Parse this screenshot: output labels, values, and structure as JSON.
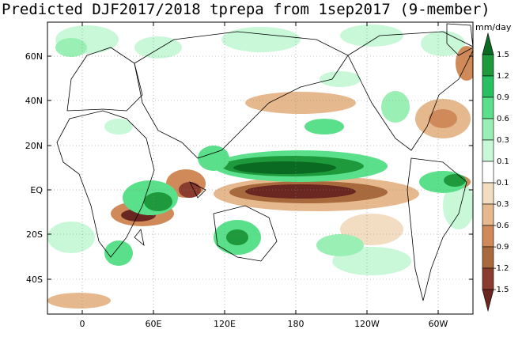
{
  "title": "Predicted DJF2017/2018 tprepa from 1sep2017 (9-member)",
  "colorbar": {
    "unit": "mm/day",
    "ticks": [
      "1.5",
      "1.2",
      "0.9",
      "0.6",
      "0.3",
      "0.1",
      "-0.1",
      "-0.3",
      "-0.6",
      "-0.9",
      "-1.2",
      "-1.5"
    ],
    "colors": [
      "#0a6a22",
      "#1e9a3c",
      "#28c060",
      "#5ae08a",
      "#9af0b4",
      "#c8f8d8",
      "#ffffff",
      "#f2ddc2",
      "#e6b88e",
      "#d08a5a",
      "#a86a3c",
      "#8a3c2e",
      "#6a2620"
    ]
  },
  "axes": {
    "x_ticks": [
      "0",
      "60E",
      "120E",
      "180",
      "120W",
      "60W"
    ],
    "y_ticks": [
      "60N",
      "40N",
      "20N",
      "EQ",
      "20S",
      "40S"
    ]
  },
  "icons": {
    "map": "global-precipitation-anomaly-map"
  }
}
